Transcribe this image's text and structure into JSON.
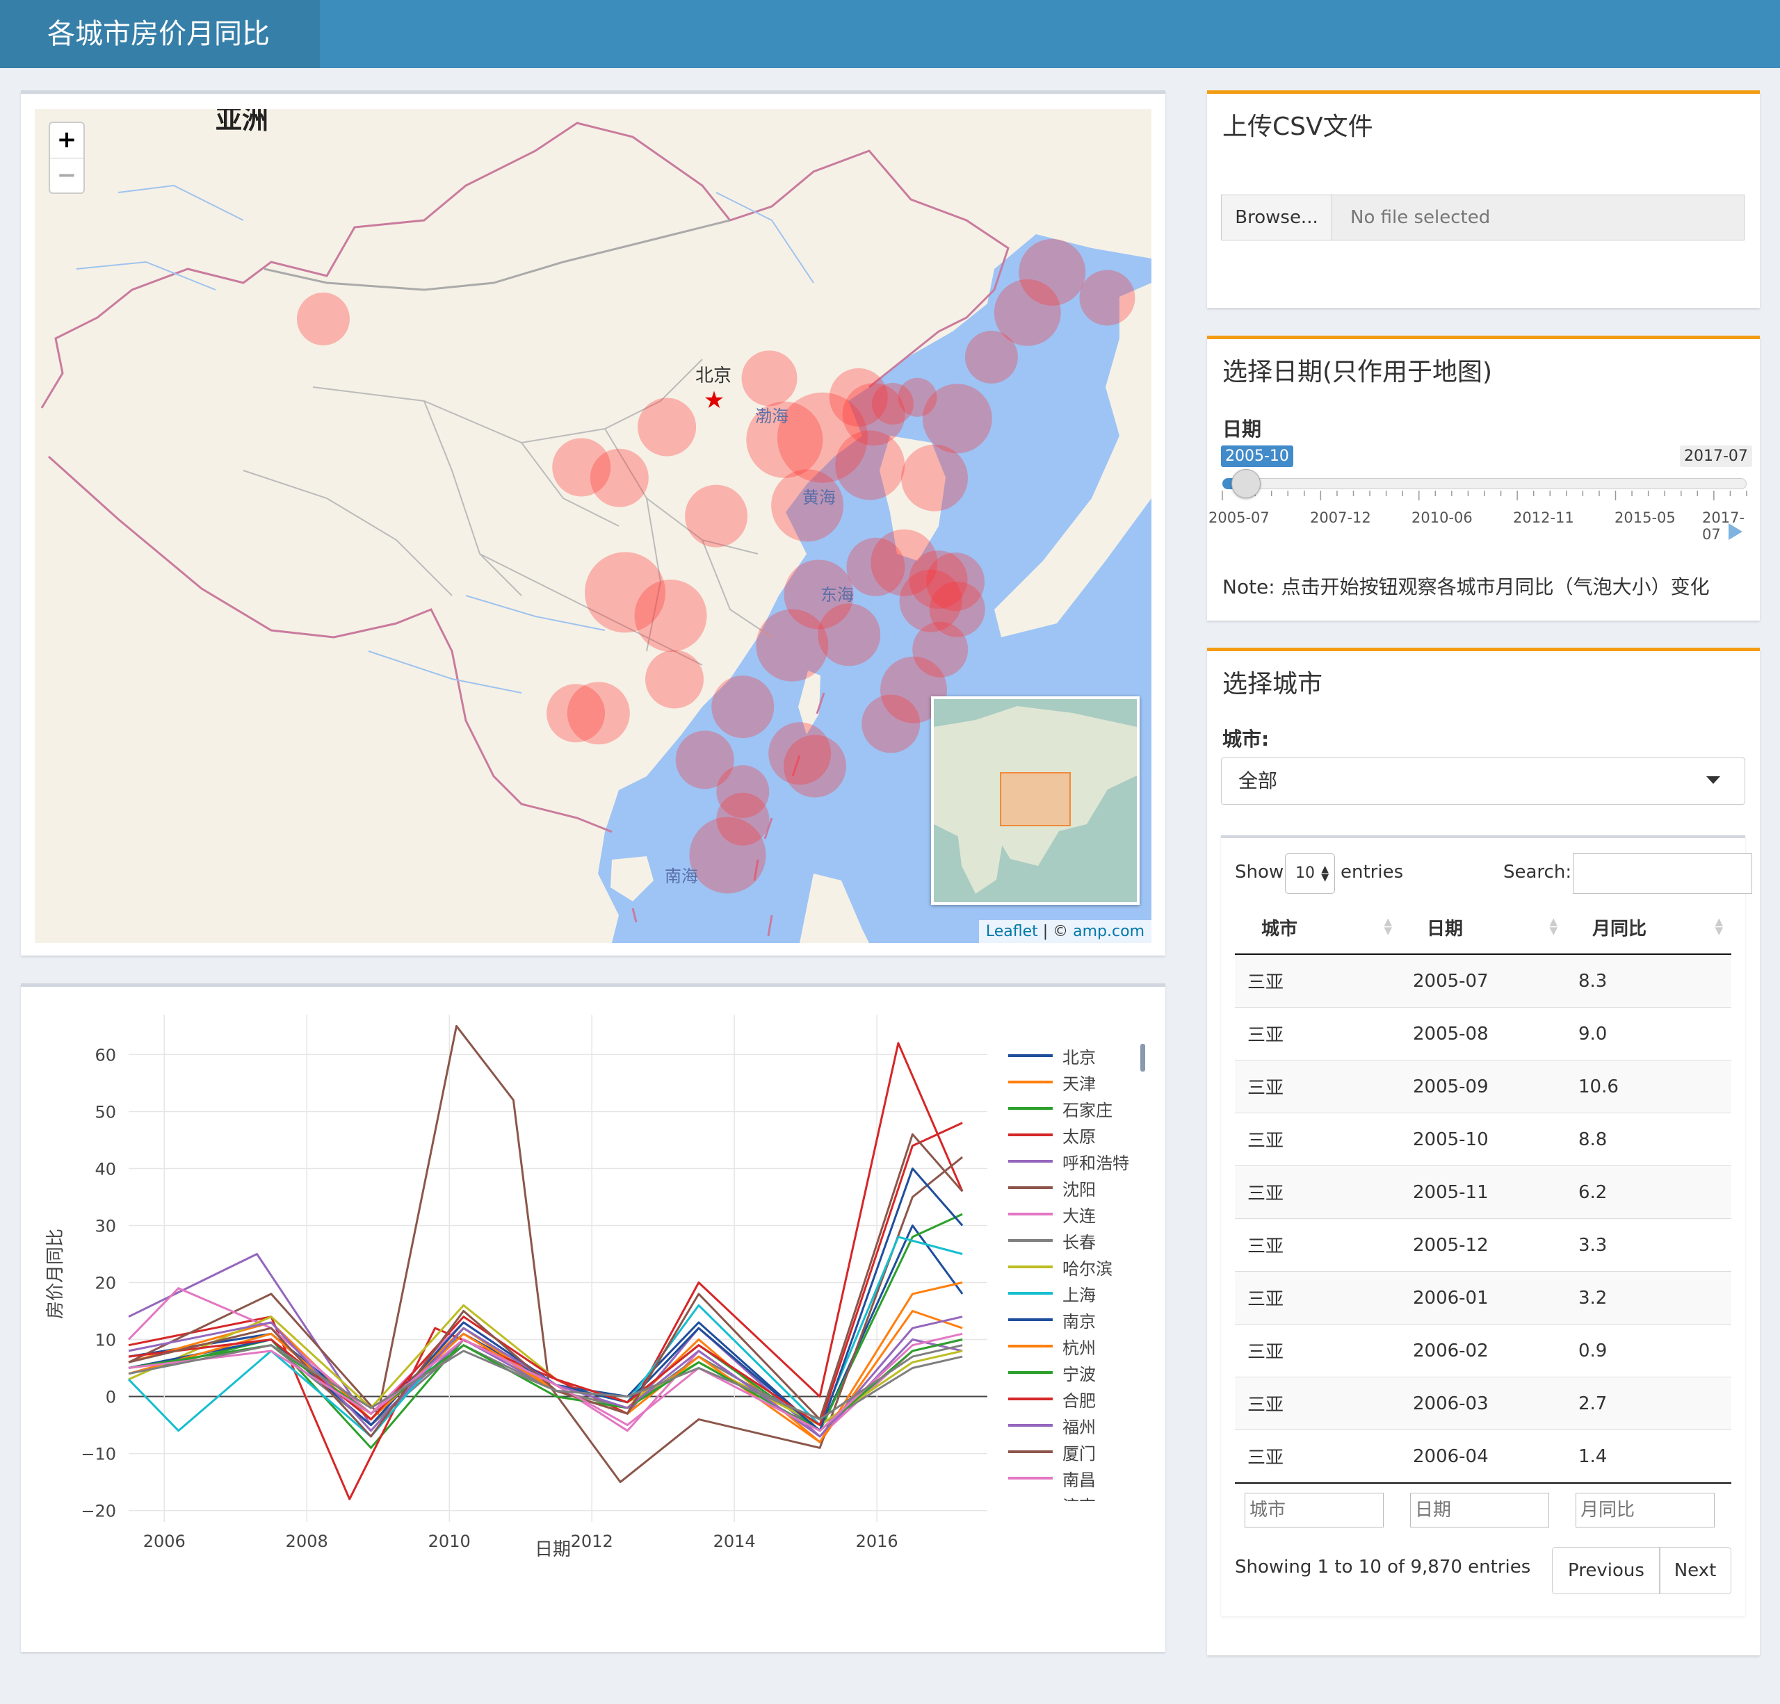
{
  "header": {
    "title": "各城市房价月同比"
  },
  "map": {
    "continent_label": "亚洲",
    "city_label": "北京",
    "sea_labels": [
      "渤海",
      "黄海",
      "东海",
      "南海"
    ],
    "zoom_in": "+",
    "zoom_out": "−",
    "attribution": {
      "leaflet": "Leaflet",
      "separator": " | © ",
      "source": "amp.com"
    },
    "bubble_color": "#ff3333",
    "bubbles": [
      {
        "lon": 88.2,
        "lat": 43.6,
        "r": 38
      },
      {
        "lon": 114.5,
        "lat": 38.0,
        "r": 65
      },
      {
        "lon": 112.5,
        "lat": 37.9,
        "r": 55
      },
      {
        "lon": 116.4,
        "lat": 39.9,
        "r": 42
      },
      {
        "lon": 117.2,
        "lat": 39.1,
        "r": 45
      },
      {
        "lon": 118.2,
        "lat": 39.6,
        "r": 30
      },
      {
        "lon": 119.5,
        "lat": 39.9,
        "r": 28
      },
      {
        "lon": 121.6,
        "lat": 38.9,
        "r": 50
      },
      {
        "lon": 123.4,
        "lat": 41.8,
        "r": 38
      },
      {
        "lon": 125.3,
        "lat": 43.9,
        "r": 48
      },
      {
        "lon": 126.6,
        "lat": 45.8,
        "r": 48
      },
      {
        "lon": 129.5,
        "lat": 44.6,
        "r": 40
      },
      {
        "lon": 111.7,
        "lat": 40.8,
        "r": 40
      },
      {
        "lon": 106.3,
        "lat": 38.5,
        "r": 42
      },
      {
        "lon": 103.8,
        "lat": 36.1,
        "r": 42
      },
      {
        "lon": 101.8,
        "lat": 36.6,
        "r": 42
      },
      {
        "lon": 120.4,
        "lat": 36.1,
        "r": 48
      },
      {
        "lon": 117.0,
        "lat": 36.7,
        "r": 50
      },
      {
        "lon": 113.7,
        "lat": 34.8,
        "r": 52
      },
      {
        "lon": 108.9,
        "lat": 34.3,
        "r": 45
      },
      {
        "lon": 118.8,
        "lat": 32.1,
        "r": 48
      },
      {
        "lon": 120.6,
        "lat": 31.3,
        "r": 42
      },
      {
        "lon": 121.5,
        "lat": 31.2,
        "r": 42
      },
      {
        "lon": 117.3,
        "lat": 31.9,
        "r": 42
      },
      {
        "lon": 114.3,
        "lat": 30.6,
        "r": 50
      },
      {
        "lon": 120.2,
        "lat": 30.3,
        "r": 45
      },
      {
        "lon": 121.6,
        "lat": 29.9,
        "r": 40
      },
      {
        "lon": 115.9,
        "lat": 28.7,
        "r": 45
      },
      {
        "lon": 112.9,
        "lat": 28.2,
        "r": 52
      },
      {
        "lon": 120.7,
        "lat": 28.0,
        "r": 40
      },
      {
        "lon": 104.1,
        "lat": 30.7,
        "r": 58
      },
      {
        "lon": 106.5,
        "lat": 29.6,
        "r": 52
      },
      {
        "lon": 106.7,
        "lat": 26.6,
        "r": 42
      },
      {
        "lon": 102.7,
        "lat": 25.0,
        "r": 45
      },
      {
        "lon": 101.5,
        "lat": 25.0,
        "r": 42
      },
      {
        "lon": 119.3,
        "lat": 26.1,
        "r": 48
      },
      {
        "lon": 118.1,
        "lat": 24.5,
        "r": 42
      },
      {
        "lon": 113.3,
        "lat": 23.1,
        "r": 45
      },
      {
        "lon": 114.1,
        "lat": 22.5,
        "r": 45
      },
      {
        "lon": 110.3,
        "lat": 25.3,
        "r": 45
      },
      {
        "lon": 108.3,
        "lat": 22.8,
        "r": 42
      },
      {
        "lon": 110.3,
        "lat": 21.3,
        "r": 38
      },
      {
        "lon": 110.3,
        "lat": 20.0,
        "r": 38
      },
      {
        "lon": 109.5,
        "lat": 18.3,
        "r": 55
      }
    ]
  },
  "chart_data": {
    "type": "line",
    "xlabel": "日期",
    "ylabel": "房价月同比",
    "x_ticks": [
      "2006",
      "2008",
      "2010",
      "2012",
      "2014",
      "2016"
    ],
    "y_ticks": [
      "60",
      "50",
      "40",
      "30",
      "20",
      "10",
      "0",
      "−10",
      "−20"
    ],
    "xlim": [
      "2005-07",
      "2017-07"
    ],
    "ylim": [
      -22,
      67
    ],
    "series": [
      {
        "name": "北京",
        "color": "#1f4e9c",
        "points": [
          [
            2005.5,
            7
          ],
          [
            2007.5,
            11
          ],
          [
            2008.9,
            -3
          ],
          [
            2010.2,
            11
          ],
          [
            2011.5,
            2
          ],
          [
            2012.5,
            0
          ],
          [
            2013.5,
            13
          ],
          [
            2015.2,
            -6
          ],
          [
            2016.5,
            30
          ],
          [
            2017.2,
            18
          ]
        ]
      },
      {
        "name": "天津",
        "color": "#ff7f0e",
        "points": [
          [
            2005.5,
            6
          ],
          [
            2007.5,
            13
          ],
          [
            2008.9,
            -4
          ],
          [
            2010.2,
            12
          ],
          [
            2011.5,
            1
          ],
          [
            2012.5,
            -2
          ],
          [
            2013.5,
            10
          ],
          [
            2015.2,
            -8
          ],
          [
            2016.5,
            15
          ],
          [
            2017.2,
            12
          ]
        ]
      },
      {
        "name": "石家庄",
        "color": "#2ca02c",
        "points": [
          [
            2005.5,
            4
          ],
          [
            2007.5,
            10
          ],
          [
            2008.9,
            -9
          ],
          [
            2010.2,
            10
          ],
          [
            2011.5,
            2
          ],
          [
            2012.5,
            -1
          ],
          [
            2013.5,
            9
          ],
          [
            2015.2,
            -6
          ],
          [
            2016.5,
            28
          ],
          [
            2017.2,
            32
          ]
        ]
      },
      {
        "name": "太原",
        "color": "#d62728",
        "points": [
          [
            2005.5,
            9
          ],
          [
            2007.5,
            14
          ],
          [
            2008.6,
            -18
          ],
          [
            2009.8,
            12
          ],
          [
            2011.5,
            3
          ],
          [
            2012.5,
            -3
          ],
          [
            2013.5,
            20
          ],
          [
            2015.2,
            0
          ],
          [
            2016.3,
            62
          ],
          [
            2017.2,
            36
          ]
        ]
      },
      {
        "name": "呼和浩特",
        "color": "#9467bd",
        "points": [
          [
            2005.5,
            14
          ],
          [
            2007.3,
            25
          ],
          [
            2008.9,
            -5
          ],
          [
            2010.2,
            10
          ],
          [
            2011.5,
            1
          ],
          [
            2012.5,
            -3
          ],
          [
            2013.5,
            12
          ],
          [
            2015.2,
            -7
          ],
          [
            2016.5,
            10
          ],
          [
            2017.2,
            8
          ]
        ]
      },
      {
        "name": "沈阳",
        "color": "#8c564b",
        "points": [
          [
            2005.5,
            6
          ],
          [
            2007.5,
            18
          ],
          [
            2009.0,
            -3
          ],
          [
            2010.1,
            65
          ],
          [
            2010.9,
            52
          ],
          [
            2011.4,
            2
          ],
          [
            2012.4,
            -15
          ],
          [
            2013.5,
            -4
          ],
          [
            2015.2,
            -9
          ],
          [
            2016.5,
            35
          ],
          [
            2017.2,
            42
          ]
        ]
      },
      {
        "name": "大连",
        "color": "#e377c2",
        "points": [
          [
            2005.5,
            10
          ],
          [
            2006.2,
            19
          ],
          [
            2007.5,
            12
          ],
          [
            2008.9,
            -3
          ],
          [
            2010.2,
            13
          ],
          [
            2011.5,
            2
          ],
          [
            2012.5,
            -6
          ],
          [
            2013.5,
            8
          ],
          [
            2015.2,
            -7
          ],
          [
            2016.5,
            8
          ],
          [
            2017.2,
            10
          ]
        ]
      },
      {
        "name": "长春",
        "color": "#7f7f7f",
        "points": [
          [
            2005.5,
            5
          ],
          [
            2007.5,
            9
          ],
          [
            2008.9,
            -5
          ],
          [
            2010.2,
            9
          ],
          [
            2011.5,
            1
          ],
          [
            2012.5,
            -2
          ],
          [
            2013.5,
            7
          ],
          [
            2015.2,
            -5
          ],
          [
            2016.5,
            5
          ],
          [
            2017.2,
            7
          ]
        ]
      },
      {
        "name": "哈尔滨",
        "color": "#bcbd22",
        "points": [
          [
            2005.5,
            3
          ],
          [
            2007.5,
            14
          ],
          [
            2008.9,
            -2
          ],
          [
            2010.2,
            16
          ],
          [
            2011.5,
            3
          ],
          [
            2012.5,
            -1
          ],
          [
            2013.5,
            6
          ],
          [
            2015.2,
            -5
          ],
          [
            2016.5,
            6
          ],
          [
            2017.2,
            8
          ]
        ]
      },
      {
        "name": "上海",
        "color": "#17becf",
        "points": [
          [
            2005.5,
            3
          ],
          [
            2006.2,
            -6
          ],
          [
            2007.5,
            8
          ],
          [
            2008.9,
            -7
          ],
          [
            2010.2,
            12
          ],
          [
            2011.5,
            2
          ],
          [
            2012.5,
            -1
          ],
          [
            2013.5,
            16
          ],
          [
            2015.2,
            -5
          ],
          [
            2016.3,
            28
          ],
          [
            2017.2,
            25
          ]
        ]
      },
      {
        "name": "南京",
        "color": "#1f4e9c",
        "points": [
          [
            2005.5,
            5
          ],
          [
            2007.5,
            10
          ],
          [
            2008.9,
            -5
          ],
          [
            2010.2,
            13
          ],
          [
            2011.5,
            2
          ],
          [
            2012.5,
            -1
          ],
          [
            2013.5,
            12
          ],
          [
            2015.2,
            -6
          ],
          [
            2016.5,
            40
          ],
          [
            2017.2,
            30
          ]
        ]
      },
      {
        "name": "杭州",
        "color": "#ff7f0e",
        "points": [
          [
            2005.5,
            4
          ],
          [
            2007.5,
            11
          ],
          [
            2008.9,
            -4
          ],
          [
            2010.2,
            11
          ],
          [
            2011.5,
            1
          ],
          [
            2012.5,
            -3
          ],
          [
            2013.5,
            7
          ],
          [
            2015.2,
            -8
          ],
          [
            2016.5,
            18
          ],
          [
            2017.2,
            20
          ]
        ]
      },
      {
        "name": "宁波",
        "color": "#2ca02c",
        "points": [
          [
            2005.5,
            5
          ],
          [
            2007.5,
            9
          ],
          [
            2008.9,
            -3
          ],
          [
            2010.2,
            9
          ],
          [
            2011.5,
            0
          ],
          [
            2012.5,
            -2
          ],
          [
            2013.5,
            6
          ],
          [
            2015.2,
            -6
          ],
          [
            2016.5,
            8
          ],
          [
            2017.2,
            10
          ]
        ]
      },
      {
        "name": "合肥",
        "color": "#d62728",
        "points": [
          [
            2005.5,
            7
          ],
          [
            2007.5,
            10
          ],
          [
            2008.9,
            -4
          ],
          [
            2010.2,
            14
          ],
          [
            2011.5,
            3
          ],
          [
            2012.5,
            -1
          ],
          [
            2013.5,
            9
          ],
          [
            2015.2,
            -5
          ],
          [
            2016.5,
            44
          ],
          [
            2017.2,
            48
          ]
        ]
      },
      {
        "name": "福州",
        "color": "#9467bd",
        "points": [
          [
            2005.5,
            8
          ],
          [
            2007.5,
            13
          ],
          [
            2008.9,
            -6
          ],
          [
            2010.2,
            12
          ],
          [
            2011.5,
            2
          ],
          [
            2012.5,
            -2
          ],
          [
            2013.5,
            8
          ],
          [
            2015.2,
            -7
          ],
          [
            2016.5,
            12
          ],
          [
            2017.2,
            14
          ]
        ]
      },
      {
        "name": "厦门",
        "color": "#8c564b",
        "points": [
          [
            2005.5,
            6
          ],
          [
            2007.5,
            12
          ],
          [
            2008.9,
            -7
          ],
          [
            2010.2,
            15
          ],
          [
            2011.5,
            1
          ],
          [
            2012.5,
            -3
          ],
          [
            2013.5,
            18
          ],
          [
            2015.2,
            -4
          ],
          [
            2016.5,
            46
          ],
          [
            2017.2,
            36
          ]
        ]
      },
      {
        "name": "南昌",
        "color": "#e377c2",
        "points": [
          [
            2005.5,
            5
          ],
          [
            2007.5,
            8
          ],
          [
            2008.9,
            -3
          ],
          [
            2010.2,
            10
          ],
          [
            2011.5,
            2
          ],
          [
            2012.5,
            -5
          ],
          [
            2013.5,
            5
          ],
          [
            2015.2,
            -6
          ],
          [
            2016.5,
            9
          ],
          [
            2017.2,
            11
          ]
        ]
      },
      {
        "name": "济南",
        "color": "#7f7f7f",
        "points": [
          [
            2005.5,
            4
          ],
          [
            2007.5,
            9
          ],
          [
            2008.9,
            -2
          ],
          [
            2010.2,
            8
          ],
          [
            2011.5,
            1
          ],
          [
            2012.5,
            0
          ],
          [
            2013.5,
            5
          ],
          [
            2015.2,
            -4
          ],
          [
            2016.5,
            7
          ],
          [
            2017.2,
            9
          ]
        ]
      }
    ]
  },
  "upload": {
    "title": "上传CSV文件",
    "browse_label": "Browse...",
    "file_placeholder": "No file selected"
  },
  "date_select": {
    "title": "选择日期(只作用于地图)",
    "label": "日期",
    "min_tag": "2005-10",
    "max_tag": "2017-07",
    "value_fraction": 0.021,
    "ticks": [
      "2005-07",
      "2007-12",
      "2010-06",
      "2012-11",
      "2015-05",
      "2017-07"
    ],
    "note": "Note: 点击开始按钮观察各城市月同比（气泡大小）变化"
  },
  "city_select": {
    "title": "选择城市",
    "label": "城市:",
    "selected": "全部",
    "table": {
      "show_label": "Show",
      "entries_label": "entries",
      "page_length": "10",
      "search_label": "Search:",
      "columns": [
        "城市",
        "日期",
        "月同比"
      ],
      "rows": [
        [
          "三亚",
          "2005-07",
          "8.3"
        ],
        [
          "三亚",
          "2005-08",
          "9.0"
        ],
        [
          "三亚",
          "2005-09",
          "10.6"
        ],
        [
          "三亚",
          "2005-10",
          "8.8"
        ],
        [
          "三亚",
          "2005-11",
          "6.2"
        ],
        [
          "三亚",
          "2005-12",
          "3.3"
        ],
        [
          "三亚",
          "2006-01",
          "3.2"
        ],
        [
          "三亚",
          "2006-02",
          "0.9"
        ],
        [
          "三亚",
          "2006-03",
          "2.7"
        ],
        [
          "三亚",
          "2006-04",
          "1.4"
        ]
      ],
      "footer_filters": [
        "城市",
        "日期",
        "月同比"
      ],
      "info": "Showing 1 to 10 of 9,870 entries",
      "prev_label": "Previous",
      "next_label": "Next"
    }
  }
}
